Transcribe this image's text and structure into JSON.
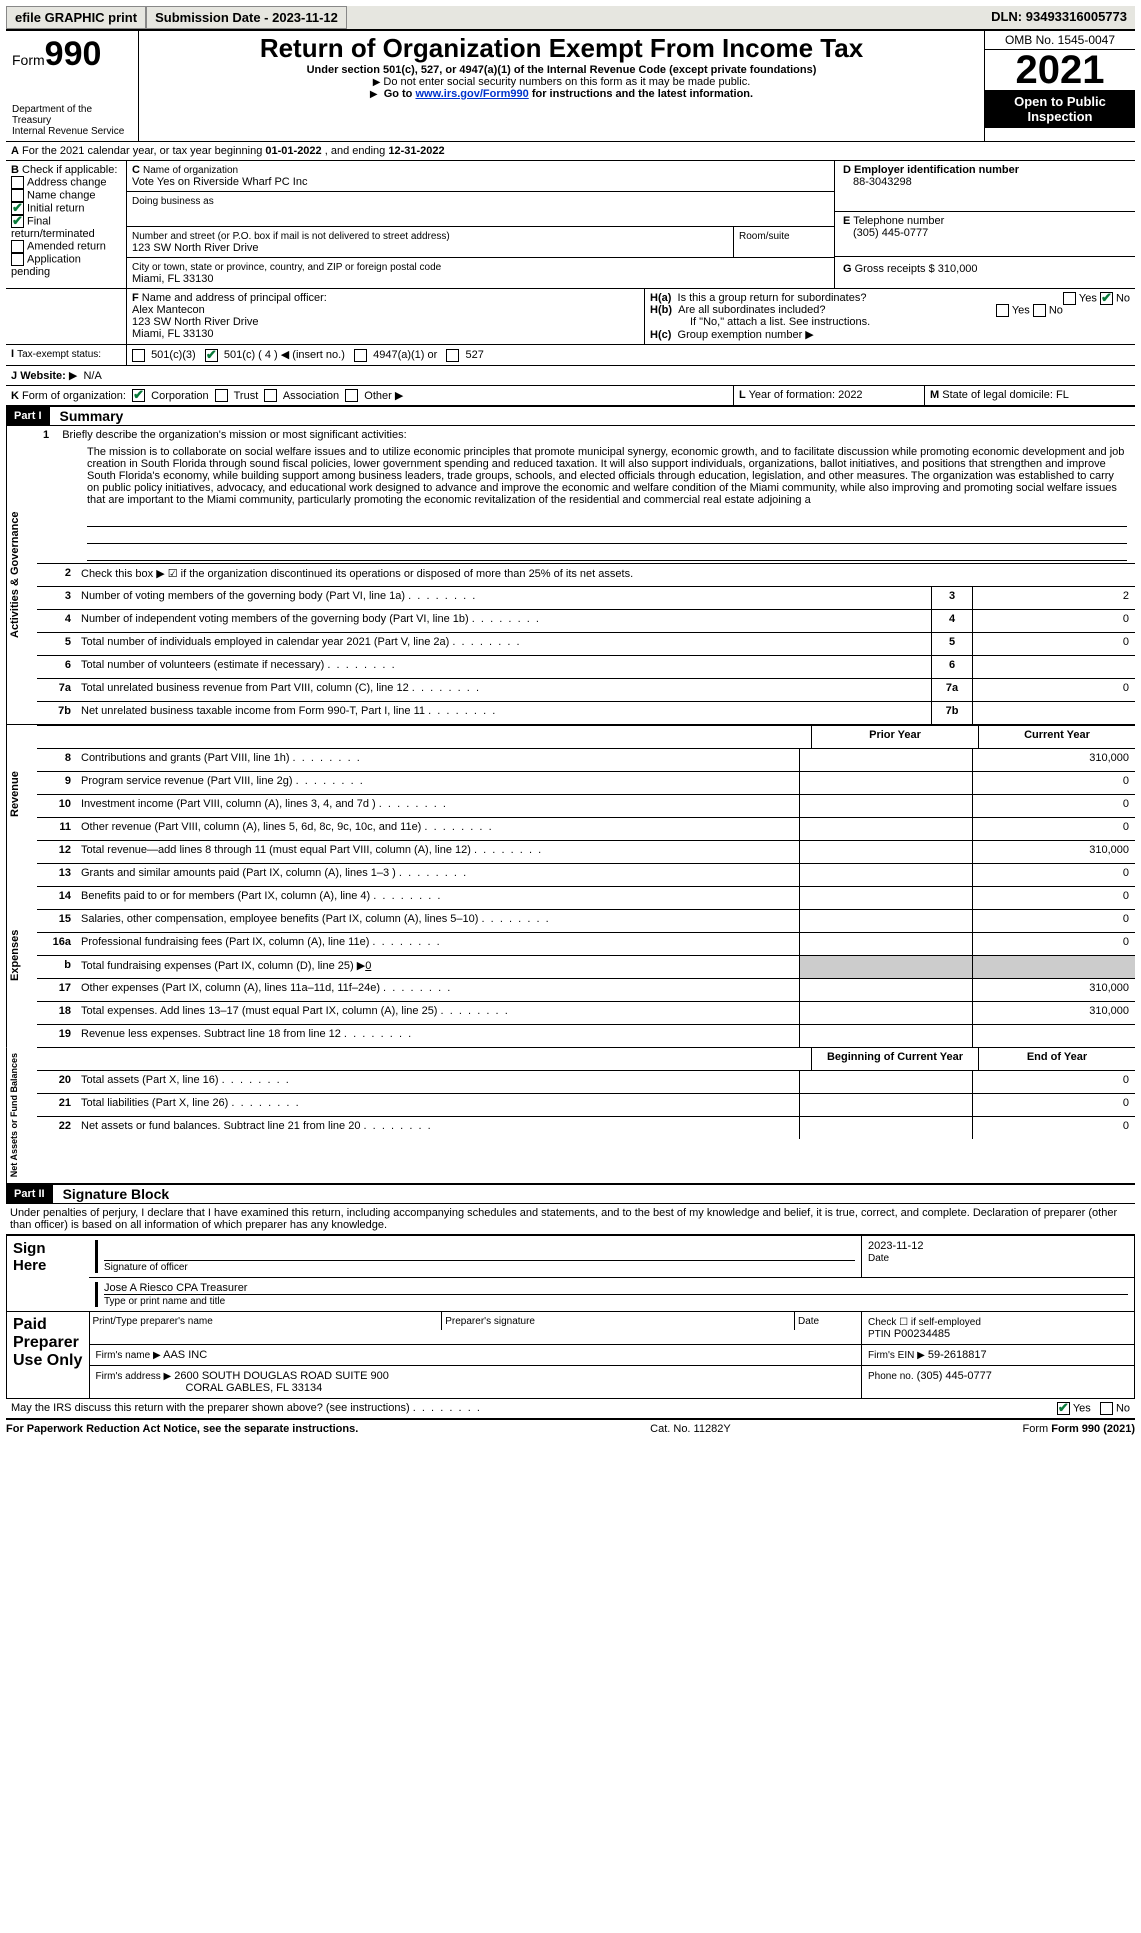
{
  "topbar": {
    "efile": "efile GRAPHIC print",
    "submission_label": "Submission Date - ",
    "submission_date": "2023-11-12",
    "dln_label": "DLN: ",
    "dln": "93493316005773"
  },
  "header": {
    "form_word": "Form",
    "form_no": "990",
    "title": "Return of Organization Exempt From Income Tax",
    "subtitle": "Under section 501(c), 527, or 4947(a)(1) of the Internal Revenue Code (except private foundations)",
    "note1": "Do not enter social security numbers on this form as it may be made public.",
    "note2_pre": "Go to ",
    "note2_link": "www.irs.gov/Form990",
    "note2_post": " for instructions and the latest information.",
    "dept1": "Department of the Treasury",
    "dept2": "Internal Revenue Service",
    "omb": "OMB No. 1545-0047",
    "year": "2021",
    "open": "Open to Public Inspection"
  },
  "A": {
    "text_pre": "For the 2021 calendar year, or tax year beginning ",
    "begin": "01-01-2022",
    "mid": " , and ending ",
    "end": "12-31-2022"
  },
  "B": {
    "label": "Check if applicable:",
    "items": [
      "Address change",
      "Name change",
      "Initial return",
      "Final return/terminated",
      "Amended return",
      "Application pending"
    ],
    "checked": [
      false,
      false,
      true,
      true,
      false,
      false
    ]
  },
  "C": {
    "label": "Name of organization",
    "name": "Vote Yes on Riverside Wharf PC Inc",
    "dba_label": "Doing business as",
    "street_label": "Number and street (or P.O. box if mail is not delivered to street address)",
    "room_label": "Room/suite",
    "street": "123 SW North River Drive",
    "city_label": "City or town, state or province, country, and ZIP or foreign postal code",
    "city": "Miami, FL  33130"
  },
  "D": {
    "label": "Employer identification number",
    "value": "88-3043298"
  },
  "E": {
    "label": "Telephone number",
    "value": "(305) 445-0777"
  },
  "G": {
    "label": "Gross receipts $",
    "value": "310,000"
  },
  "F": {
    "label": "Name and address of principal officer:",
    "name": "Alex Mantecon",
    "street": "123 SW North River Drive",
    "city": "Miami, FL  33130"
  },
  "H": {
    "a_label": "Is this a group return for subordinates?",
    "a_yes": "Yes",
    "a_no": "No",
    "b_label": "Are all subordinates included?",
    "b_note": "If \"No,\" attach a list. See instructions.",
    "c_label": "Group exemption number"
  },
  "I": {
    "label": "Tax-exempt status:",
    "opts": [
      "501(c)(3)",
      "501(c) ( 4 ) ◀ (insert no.)",
      "4947(a)(1) or",
      "527"
    ]
  },
  "J": {
    "label": "Website:",
    "value": "N/A"
  },
  "K": {
    "label": "Form of organization:",
    "opts": [
      "Corporation",
      "Trust",
      "Association",
      "Other"
    ]
  },
  "L": {
    "label": "Year of formation:",
    "value": "2022"
  },
  "M": {
    "label": "State of legal domicile:",
    "value": "FL"
  },
  "part1": {
    "hdr": "Part I",
    "title": "Summary"
  },
  "mission": {
    "intro": "Briefly describe the organization's mission or most significant activities:",
    "text": "The mission is to collaborate on social welfare issues and to utilize economic principles that promote municipal synergy, economic growth, and to facilitate discussion while promoting economic development and job creation in South Florida through sound fiscal policies, lower government spending and reduced taxation. It will also support individuals, organizations, ballot initiatives, and positions that strengthen and improve South Florida's economy, while building support among business leaders, trade groups, schools, and elected officials through education, legislation, and other measures. The organization was established to carry on public policy initiatives, advocacy, and educational work designed to advance and improve the economic and welfare condition of the Miami community, while also improving and promoting social welfare issues that are important to the Miami community, particularly promoting the economic revitalization of the residential and commercial real estate adjoining a"
  },
  "line2": "Check this box ▶ ☑ if the organization discontinued its operations or disposed of more than 25% of its net assets.",
  "govlines": [
    {
      "n": "3",
      "d": "Number of voting members of the governing body (Part VI, line 1a)",
      "v": "2"
    },
    {
      "n": "4",
      "d": "Number of independent voting members of the governing body (Part VI, line 1b)",
      "v": "0"
    },
    {
      "n": "5",
      "d": "Total number of individuals employed in calendar year 2021 (Part V, line 2a)",
      "v": "0"
    },
    {
      "n": "6",
      "d": "Total number of volunteers (estimate if necessary)",
      "v": ""
    },
    {
      "n": "7a",
      "d": "Total unrelated business revenue from Part VIII, column (C), line 12",
      "v": "0"
    },
    {
      "n": "7b",
      "d": "Net unrelated business taxable income from Form 990-T, Part I, line 11",
      "v": ""
    }
  ],
  "colhdrs": {
    "prior": "Prior Year",
    "current": "Current Year"
  },
  "revenue_label": "Revenue",
  "revlines": [
    {
      "n": "8",
      "d": "Contributions and grants (Part VIII, line 1h)",
      "p": "",
      "c": "310,000"
    },
    {
      "n": "9",
      "d": "Program service revenue (Part VIII, line 2g)",
      "p": "",
      "c": "0"
    },
    {
      "n": "10",
      "d": "Investment income (Part VIII, column (A), lines 3, 4, and 7d )",
      "p": "",
      "c": "0"
    },
    {
      "n": "11",
      "d": "Other revenue (Part VIII, column (A), lines 5, 6d, 8c, 9c, 10c, and 11e)",
      "p": "",
      "c": "0"
    },
    {
      "n": "12",
      "d": "Total revenue—add lines 8 through 11 (must equal Part VIII, column (A), line 12)",
      "p": "",
      "c": "310,000"
    }
  ],
  "expenses_label": "Expenses",
  "explines": [
    {
      "n": "13",
      "d": "Grants and similar amounts paid (Part IX, column (A), lines 1–3 )",
      "p": "",
      "c": "0"
    },
    {
      "n": "14",
      "d": "Benefits paid to or for members (Part IX, column (A), line 4)",
      "p": "",
      "c": "0"
    },
    {
      "n": "15",
      "d": "Salaries, other compensation, employee benefits (Part IX, column (A), lines 5–10)",
      "p": "",
      "c": "0"
    },
    {
      "n": "16a",
      "d": "Professional fundraising fees (Part IX, column (A), line 11e)",
      "p": "",
      "c": "0"
    }
  ],
  "line16b": {
    "n": "b",
    "d": "Total fundraising expenses (Part IX, column (D), line 25) ▶",
    "v": "0"
  },
  "explines2": [
    {
      "n": "17",
      "d": "Other expenses (Part IX, column (A), lines 11a–11d, 11f–24e)",
      "p": "",
      "c": "310,000"
    },
    {
      "n": "18",
      "d": "Total expenses. Add lines 13–17 (must equal Part IX, column (A), line 25)",
      "p": "",
      "c": "310,000"
    },
    {
      "n": "19",
      "d": "Revenue less expenses. Subtract line 18 from line 12",
      "p": "",
      "c": ""
    }
  ],
  "na_label": "Net Assets or Fund Balances",
  "nacolhdrs": {
    "begin": "Beginning of Current Year",
    "end": "End of Year"
  },
  "nalines": [
    {
      "n": "20",
      "d": "Total assets (Part X, line 16)",
      "p": "",
      "c": "0"
    },
    {
      "n": "21",
      "d": "Total liabilities (Part X, line 26)",
      "p": "",
      "c": "0"
    },
    {
      "n": "22",
      "d": "Net assets or fund balances. Subtract line 21 from line 20",
      "p": "",
      "c": "0"
    }
  ],
  "part2": {
    "hdr": "Part II",
    "title": "Signature Block"
  },
  "sig": {
    "decl": "Under penalties of perjury, I declare that I have examined this return, including accompanying schedules and statements, and to the best of my knowledge and belief, it is true, correct, and complete. Declaration of preparer (other than officer) is based on all information of which preparer has any knowledge.",
    "sign_here": "Sign Here",
    "sig_officer": "Signature of officer",
    "date_label": "Date",
    "date": "2023-11-12",
    "name_title": "Jose A Riesco CPA  Treasurer",
    "type_label": "Type or print name and title",
    "paid": "Paid Preparer Use Only",
    "pt_name_label": "Print/Type preparer's name",
    "prep_sig_label": "Preparer's signature",
    "check_self": "Check ☐ if self-employed",
    "ptin_label": "PTIN",
    "ptin": "P00234485",
    "firm_name_label": "Firm's name  ▶",
    "firm_name": "AAS INC",
    "firm_ein_label": "Firm's EIN ▶",
    "firm_ein": "59-2618817",
    "firm_addr_label": "Firm's address ▶",
    "firm_addr1": "2600 SOUTH DOUGLAS ROAD SUITE 900",
    "firm_addr2": "CORAL GABLES, FL  33134",
    "phone_label": "Phone no.",
    "phone": "(305) 445-0777",
    "discuss": "May the IRS discuss this return with the preparer shown above? (see instructions)",
    "yes": "Yes",
    "no": "No"
  },
  "footer": {
    "pra": "For Paperwork Reduction Act Notice, see the separate instructions.",
    "cat": "Cat. No. 11282Y",
    "form": "Form 990 (2021)"
  },
  "ag_label": "Activities & Governance"
}
